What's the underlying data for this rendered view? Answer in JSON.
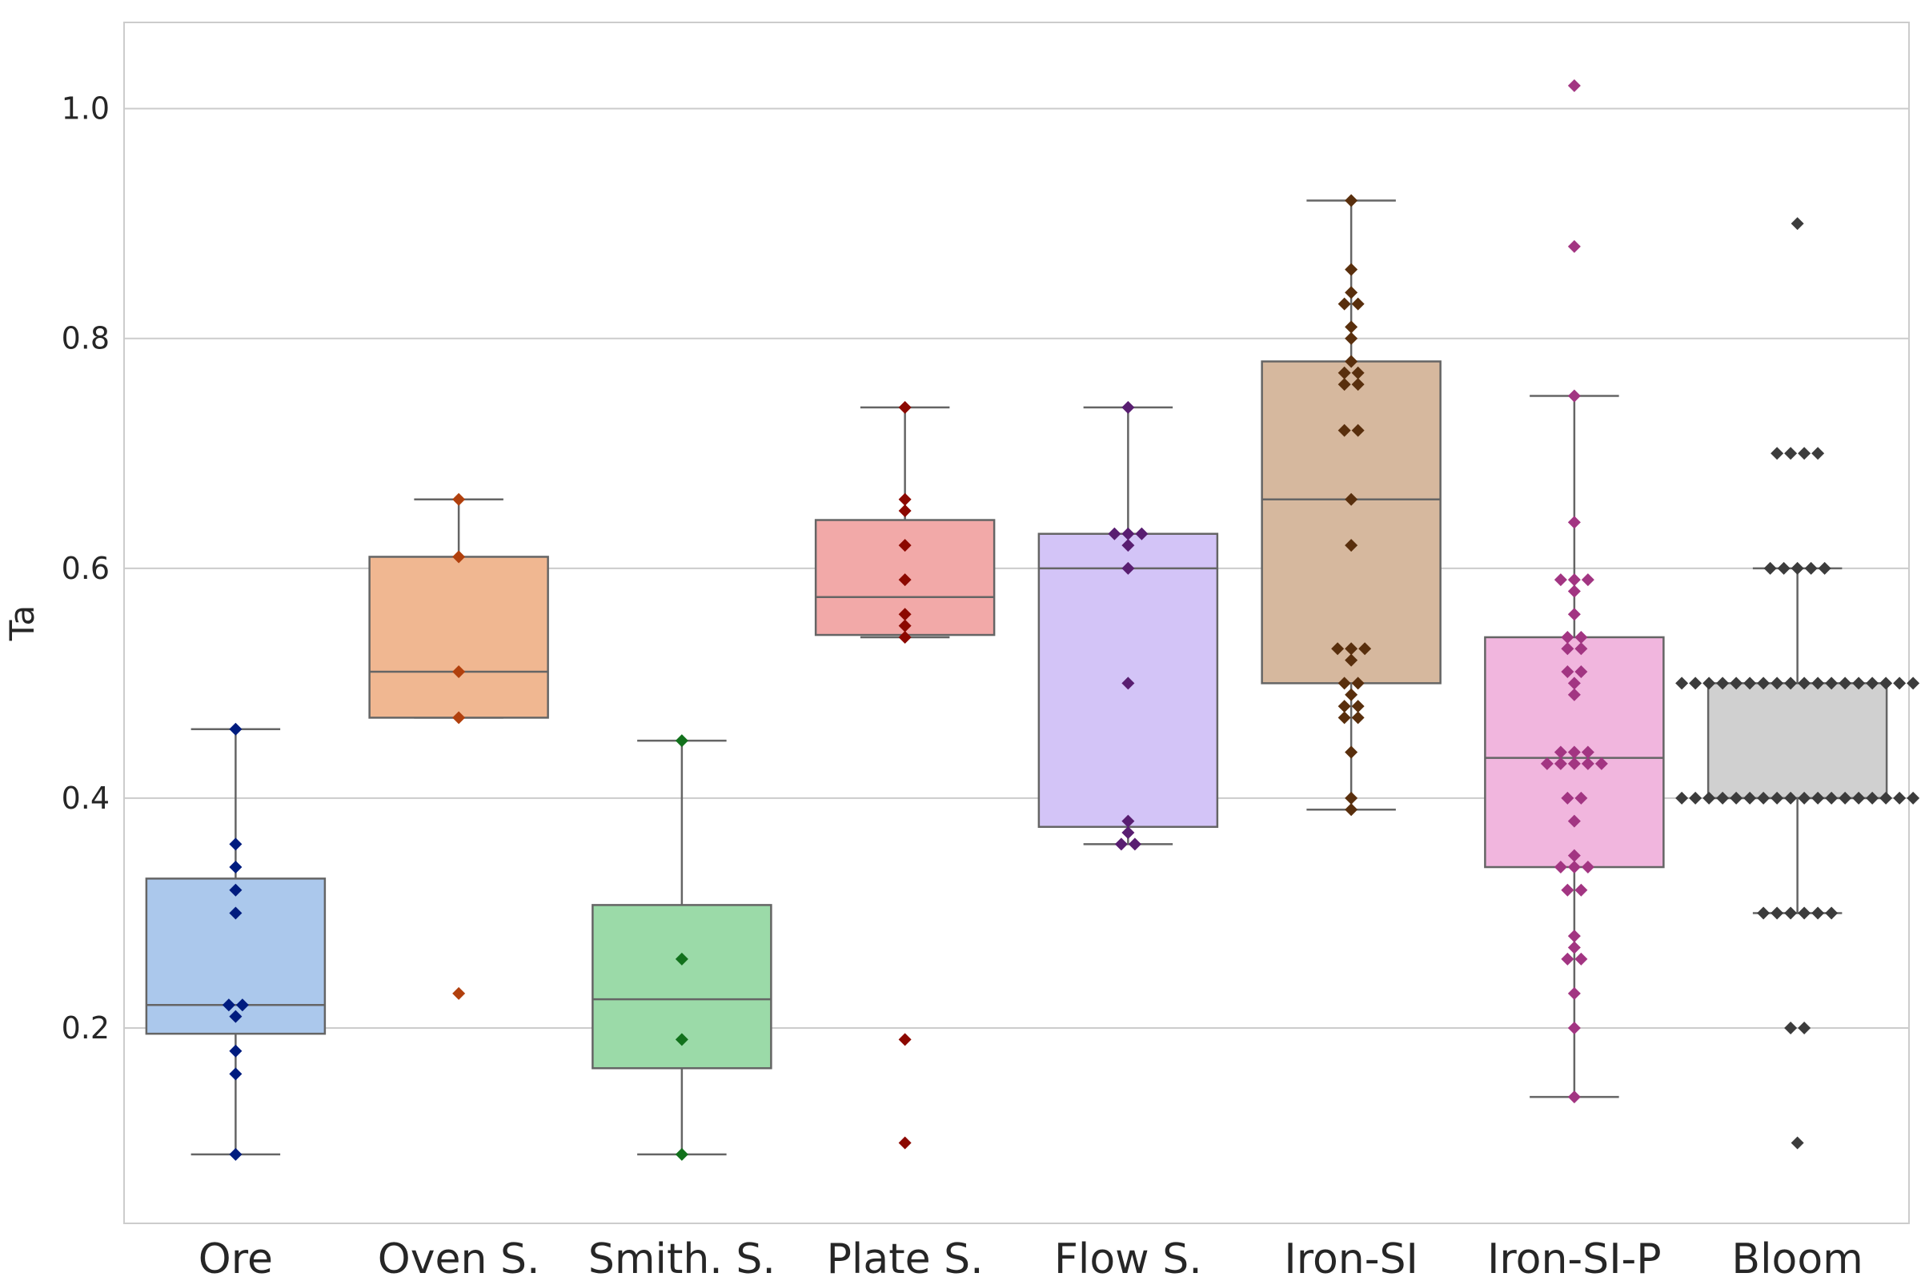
{
  "chart_data": {
    "type": "box",
    "title": "",
    "xlabel": "",
    "ylabel": "Ta",
    "ylim": [
      0.03,
      1.075
    ],
    "yticks": [
      0.2,
      0.4,
      0.6,
      0.8,
      1.0
    ],
    "ytick_labels": [
      "0.2",
      "0.4",
      "0.6",
      "0.8",
      "1.0"
    ],
    "grid": "horizontal",
    "categories": [
      "Ore",
      "Oven S.",
      "Smith. S.",
      "Plate S.",
      "Flow S.",
      "Iron-SI",
      "Iron-SI-P",
      "Bloom"
    ],
    "colors": {
      "box_fill": [
        "#abc8ec",
        "#f0b791",
        "#9bdaa8",
        "#f2a9a8",
        "#d3c4f7",
        "#d6b89e",
        "#f1b6de",
        "#d0d0d0"
      ],
      "points": [
        "#001c7f",
        "#b1400d",
        "#12711c",
        "#8c0800",
        "#591e71",
        "#592f0d",
        "#a23582",
        "#3c3c3c"
      ],
      "line": "#656565",
      "grid": "#cccccc",
      "axes_border": "#cccccc"
    },
    "series": [
      {
        "name": "Ore",
        "whisker_low": 0.09,
        "q1": 0.195,
        "median": 0.22,
        "q3": 0.33,
        "whisker_high": 0.46,
        "points": [
          0.46,
          0.36,
          0.34,
          0.32,
          0.3,
          0.22,
          0.22,
          0.21,
          0.18,
          0.16,
          0.09
        ]
      },
      {
        "name": "Oven S.",
        "whisker_low": 0.47,
        "q1": 0.47,
        "median": 0.51,
        "q3": 0.61,
        "whisker_high": 0.66,
        "points": [
          0.66,
          0.61,
          0.51,
          0.47,
          0.23
        ]
      },
      {
        "name": "Smith. S.",
        "whisker_low": 0.09,
        "q1": 0.165,
        "median": 0.225,
        "q3": 0.307,
        "whisker_high": 0.45,
        "points": [
          0.45,
          0.26,
          0.19,
          0.09
        ]
      },
      {
        "name": "Plate S.",
        "whisker_low": 0.54,
        "q1": 0.542,
        "median": 0.575,
        "q3": 0.642,
        "whisker_high": 0.74,
        "points": [
          0.74,
          0.66,
          0.65,
          0.62,
          0.59,
          0.56,
          0.55,
          0.54,
          0.19,
          0.1
        ]
      },
      {
        "name": "Flow S.",
        "whisker_low": 0.36,
        "q1": 0.375,
        "median": 0.6,
        "q3": 0.63,
        "whisker_high": 0.74,
        "points": [
          0.74,
          0.63,
          0.63,
          0.63,
          0.62,
          0.6,
          0.5,
          0.38,
          0.37,
          0.36,
          0.36
        ]
      },
      {
        "name": "Iron-SI",
        "whisker_low": 0.39,
        "q1": 0.5,
        "median": 0.66,
        "q3": 0.78,
        "whisker_high": 0.92,
        "points": [
          0.92,
          0.86,
          0.84,
          0.83,
          0.83,
          0.81,
          0.8,
          0.78,
          0.77,
          0.77,
          0.76,
          0.76,
          0.72,
          0.72,
          0.66,
          0.62,
          0.53,
          0.53,
          0.53,
          0.52,
          0.5,
          0.5,
          0.49,
          0.48,
          0.48,
          0.47,
          0.47,
          0.44,
          0.4,
          0.39
        ]
      },
      {
        "name": "Iron-SI-P",
        "whisker_low": 0.14,
        "q1": 0.34,
        "median": 0.435,
        "q3": 0.54,
        "whisker_high": 0.75,
        "points": [
          1.02,
          0.88,
          0.75,
          0.64,
          0.59,
          0.59,
          0.59,
          0.58,
          0.56,
          0.54,
          0.54,
          0.53,
          0.53,
          0.51,
          0.51,
          0.5,
          0.49,
          0.44,
          0.44,
          0.44,
          0.43,
          0.43,
          0.43,
          0.43,
          0.43,
          0.4,
          0.4,
          0.38,
          0.35,
          0.34,
          0.34,
          0.34,
          0.32,
          0.32,
          0.28,
          0.27,
          0.26,
          0.26,
          0.23,
          0.2,
          0.14
        ]
      },
      {
        "name": "Bloom",
        "whisker_low": 0.3,
        "q1": 0.4,
        "median": 0.4,
        "q3": 0.5,
        "whisker_high": 0.6,
        "points": [
          0.9,
          0.7,
          0.7,
          0.7,
          0.7,
          0.6,
          0.6,
          0.6,
          0.6,
          0.6,
          0.5,
          0.5,
          0.5,
          0.5,
          0.5,
          0.5,
          0.5,
          0.5,
          0.5,
          0.5,
          0.5,
          0.5,
          0.5,
          0.5,
          0.5,
          0.5,
          0.5,
          0.5,
          0.4,
          0.4,
          0.4,
          0.4,
          0.4,
          0.4,
          0.4,
          0.4,
          0.4,
          0.4,
          0.4,
          0.4,
          0.4,
          0.4,
          0.4,
          0.4,
          0.4,
          0.4,
          0.3,
          0.3,
          0.3,
          0.3,
          0.3,
          0.3,
          0.2,
          0.2,
          0.1
        ]
      }
    ]
  }
}
